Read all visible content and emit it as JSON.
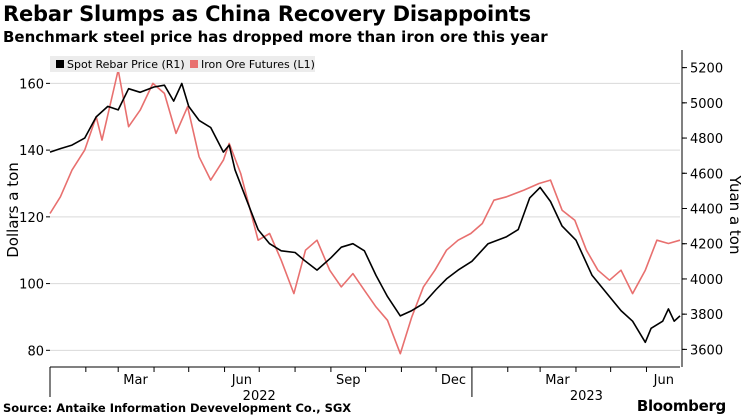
{
  "header": {
    "title": "Rebar Slumps as China Recovery Disappoints",
    "subtitle": "Benchmark steel price has dropped more than iron ore this year"
  },
  "footer": {
    "source": "Source: Antaike Information Devevelopment Co., SGX",
    "brand": "Bloomberg"
  },
  "colors": {
    "rebar": "#000000",
    "iron_ore": "#e8706f",
    "grid": "#d9d9d9",
    "axis": "#000000"
  },
  "chart_data": {
    "type": "line",
    "x_tick_labels": [
      "Mar",
      "Jun",
      "Sep",
      "Dec",
      "Mar",
      "Jun"
    ],
    "x_year_labels": [
      "2022",
      "2023"
    ],
    "x_range": [
      "2022-01-01",
      "2023-06-30"
    ],
    "ylabel_left": "Dollars a ton",
    "ylabel_right": "Yuan a ton",
    "ylim_left": [
      75,
      170
    ],
    "ylim_right": [
      3500,
      5300
    ],
    "y_ticks_left": [
      80,
      100,
      120,
      140,
      160
    ],
    "y_ticks_right": [
      3600,
      3800,
      4000,
      4200,
      4400,
      4600,
      4800,
      5000,
      5200
    ],
    "grid": "horizontal",
    "legend_position": "top-left",
    "series": [
      {
        "name": "Spot Rebar Price (R1)",
        "axis": "right",
        "color": "#000000",
        "points": [
          [
            "2022-01-01",
            4720
          ],
          [
            "2022-01-10",
            4740
          ],
          [
            "2022-01-20",
            4760
          ],
          [
            "2022-01-31",
            4800
          ],
          [
            "2022-02-10",
            4920
          ],
          [
            "2022-02-20",
            4980
          ],
          [
            "2022-03-01",
            4960
          ],
          [
            "2022-03-10",
            5080
          ],
          [
            "2022-03-20",
            5060
          ],
          [
            "2022-04-01",
            5090
          ],
          [
            "2022-04-10",
            5100
          ],
          [
            "2022-04-18",
            5010
          ],
          [
            "2022-04-25",
            5110
          ],
          [
            "2022-05-01",
            4980
          ],
          [
            "2022-05-10",
            4900
          ],
          [
            "2022-05-20",
            4860
          ],
          [
            "2022-05-31",
            4720
          ],
          [
            "2022-06-05",
            4760
          ],
          [
            "2022-06-10",
            4620
          ],
          [
            "2022-06-20",
            4450
          ],
          [
            "2022-06-30",
            4280
          ],
          [
            "2022-07-10",
            4200
          ],
          [
            "2022-07-20",
            4160
          ],
          [
            "2022-08-01",
            4150
          ],
          [
            "2022-08-10",
            4100
          ],
          [
            "2022-08-20",
            4050
          ],
          [
            "2022-09-01",
            4120
          ],
          [
            "2022-09-10",
            4180
          ],
          [
            "2022-09-20",
            4200
          ],
          [
            "2022-09-30",
            4160
          ],
          [
            "2022-10-10",
            4020
          ],
          [
            "2022-10-20",
            3900
          ],
          [
            "2022-10-31",
            3790
          ],
          [
            "2022-11-10",
            3820
          ],
          [
            "2022-11-20",
            3860
          ],
          [
            "2022-12-01",
            3940
          ],
          [
            "2022-12-10",
            4000
          ],
          [
            "2022-12-20",
            4050
          ],
          [
            "2023-01-01",
            4100
          ],
          [
            "2023-01-15",
            4200
          ],
          [
            "2023-01-31",
            4240
          ],
          [
            "2023-02-10",
            4280
          ],
          [
            "2023-02-20",
            4460
          ],
          [
            "2023-03-01",
            4520
          ],
          [
            "2023-03-10",
            4440
          ],
          [
            "2023-03-20",
            4300
          ],
          [
            "2023-04-01",
            4220
          ],
          [
            "2023-04-15",
            4020
          ],
          [
            "2023-04-30",
            3900
          ],
          [
            "2023-05-10",
            3820
          ],
          [
            "2023-05-20",
            3760
          ],
          [
            "2023-05-31",
            3640
          ],
          [
            "2023-06-05",
            3720
          ],
          [
            "2023-06-15",
            3760
          ],
          [
            "2023-06-20",
            3830
          ],
          [
            "2023-06-25",
            3760
          ],
          [
            "2023-06-30",
            3790
          ]
        ]
      },
      {
        "name": "Iron Ore Futures (L1)",
        "axis": "left",
        "color": "#e8706f",
        "points": [
          [
            "2022-01-01",
            121
          ],
          [
            "2022-01-10",
            126
          ],
          [
            "2022-01-20",
            134
          ],
          [
            "2022-01-31",
            140
          ],
          [
            "2022-02-10",
            150
          ],
          [
            "2022-02-15",
            143
          ],
          [
            "2022-02-25",
            158
          ],
          [
            "2022-03-01",
            164
          ],
          [
            "2022-03-10",
            147
          ],
          [
            "2022-03-20",
            152
          ],
          [
            "2022-03-31",
            160
          ],
          [
            "2022-04-10",
            157
          ],
          [
            "2022-04-20",
            145
          ],
          [
            "2022-04-30",
            153
          ],
          [
            "2022-05-10",
            138
          ],
          [
            "2022-05-20",
            131
          ],
          [
            "2022-05-31",
            137
          ],
          [
            "2022-06-05",
            142
          ],
          [
            "2022-06-15",
            133
          ],
          [
            "2022-06-30",
            113
          ],
          [
            "2022-07-10",
            115
          ],
          [
            "2022-07-20",
            107
          ],
          [
            "2022-07-31",
            97
          ],
          [
            "2022-08-10",
            110
          ],
          [
            "2022-08-20",
            113
          ],
          [
            "2022-08-31",
            104
          ],
          [
            "2022-09-10",
            99
          ],
          [
            "2022-09-20",
            103
          ],
          [
            "2022-09-30",
            98
          ],
          [
            "2022-10-10",
            93
          ],
          [
            "2022-10-20",
            89
          ],
          [
            "2022-10-31",
            79
          ],
          [
            "2022-11-10",
            90
          ],
          [
            "2022-11-20",
            99
          ],
          [
            "2022-11-30",
            104
          ],
          [
            "2022-12-10",
            110
          ],
          [
            "2022-12-20",
            113
          ],
          [
            "2022-12-31",
            115
          ],
          [
            "2023-01-10",
            118
          ],
          [
            "2023-01-20",
            125
          ],
          [
            "2023-01-31",
            126
          ],
          [
            "2023-02-15",
            128
          ],
          [
            "2023-02-28",
            130
          ],
          [
            "2023-03-10",
            131
          ],
          [
            "2023-03-20",
            122
          ],
          [
            "2023-03-31",
            119
          ],
          [
            "2023-04-10",
            110
          ],
          [
            "2023-04-20",
            104
          ],
          [
            "2023-04-30",
            101
          ],
          [
            "2023-05-10",
            104
          ],
          [
            "2023-05-20",
            97
          ],
          [
            "2023-05-31",
            104
          ],
          [
            "2023-06-10",
            113
          ],
          [
            "2023-06-20",
            112
          ],
          [
            "2023-06-30",
            113
          ]
        ]
      }
    ]
  }
}
